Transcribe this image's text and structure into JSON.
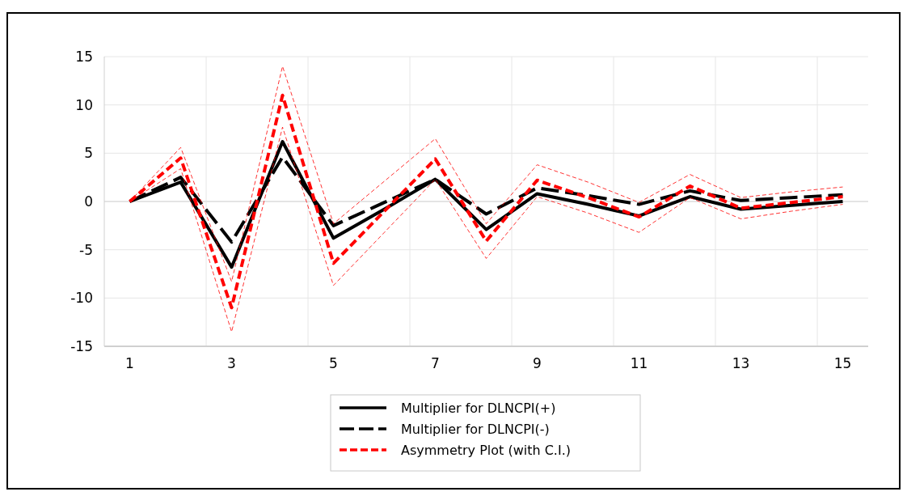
{
  "chart_data": {
    "type": "line",
    "categories": [
      "1",
      null,
      "3",
      null,
      "5",
      null,
      "7",
      null,
      "9",
      null,
      "11",
      null,
      "13",
      null,
      "15"
    ],
    "ylim": [
      -15,
      15
    ],
    "yticks": [
      -15,
      -10,
      -5,
      0,
      5,
      10,
      15
    ],
    "grid": true,
    "legend": "bottom",
    "marker": "none",
    "series": [
      {
        "name": "Multiplier for DLNCPI(+)",
        "color": "#000000",
        "line_style": "solid",
        "values": [
          0,
          2.0,
          -6.8,
          6.2,
          -3.8,
          -0.8,
          2.3,
          -2.9,
          0.8,
          -0.3,
          -1.5,
          0.5,
          -0.8,
          -0.4,
          0
        ]
      },
      {
        "name": "Multiplier for DLNCPI(-)",
        "color": "#000000",
        "line_style": "dashed",
        "values": [
          0,
          2.5,
          -4.2,
          4.6,
          -2.5,
          -0.1,
          2.3,
          -1.3,
          1.4,
          0.6,
          -0.3,
          1.1,
          0.1,
          0.4,
          0.7
        ]
      },
      {
        "name": "Asymmetry Plot (with C.I.)",
        "color": "#ff0000",
        "line_style": "dashed",
        "values": [
          0,
          4.5,
          -11,
          11,
          -6.4,
          -1.0,
          4.4,
          -4.1,
          2.2,
          0.4,
          -1.6,
          1.6,
          -0.7,
          -0.1,
          0.5
        ]
      },
      {
        "color": "#ff0000",
        "line_style": "dashed",
        "values": [
          0,
          3.4,
          -13.5,
          7.7,
          -8.7,
          -3.2,
          2.3,
          -5.9,
          0.5,
          -1.2,
          -3.2,
          0.4,
          -1.8,
          -1.0,
          -0.3
        ]
      },
      {
        "color": "#ff0000",
        "line_style": "dashed",
        "values": [
          0,
          5.6,
          -8.3,
          14,
          -2.3,
          2.1,
          6.5,
          -2.3,
          3.8,
          2.0,
          -0.1,
          2.8,
          0.4,
          1.0,
          1.5
        ]
      }
    ]
  }
}
